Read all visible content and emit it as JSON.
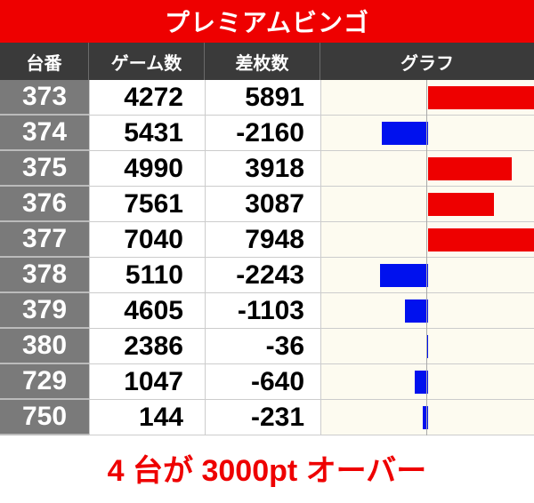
{
  "title": "プレミアムビンゴ",
  "columns": [
    "台番",
    "ゲーム数",
    "差枚数",
    "グラフ"
  ],
  "rows": [
    {
      "id": "373",
      "games": "4272",
      "diff": "5891",
      "value": 5891
    },
    {
      "id": "374",
      "games": "5431",
      "diff": "-2160",
      "value": -2160
    },
    {
      "id": "375",
      "games": "4990",
      "diff": "3918",
      "value": 3918
    },
    {
      "id": "376",
      "games": "7561",
      "diff": "3087",
      "value": 3087
    },
    {
      "id": "377",
      "games": "7040",
      "diff": "7948",
      "value": 7948
    },
    {
      "id": "378",
      "games": "5110",
      "diff": "-2243",
      "value": -2243
    },
    {
      "id": "379",
      "games": "4605",
      "diff": "-1103",
      "value": -1103
    },
    {
      "id": "380",
      "games": "2386",
      "diff": "-36",
      "value": -36
    },
    {
      "id": "729",
      "games": "1047",
      "diff": "-640",
      "value": -640
    },
    {
      "id": "750",
      "games": "144",
      "diff": "-231",
      "value": -231
    }
  ],
  "footer": "4 台が 3000pt オーバー",
  "colors": {
    "accent": "#ee0000",
    "positive": "#ee0000",
    "negative": "#0011ee"
  }
}
